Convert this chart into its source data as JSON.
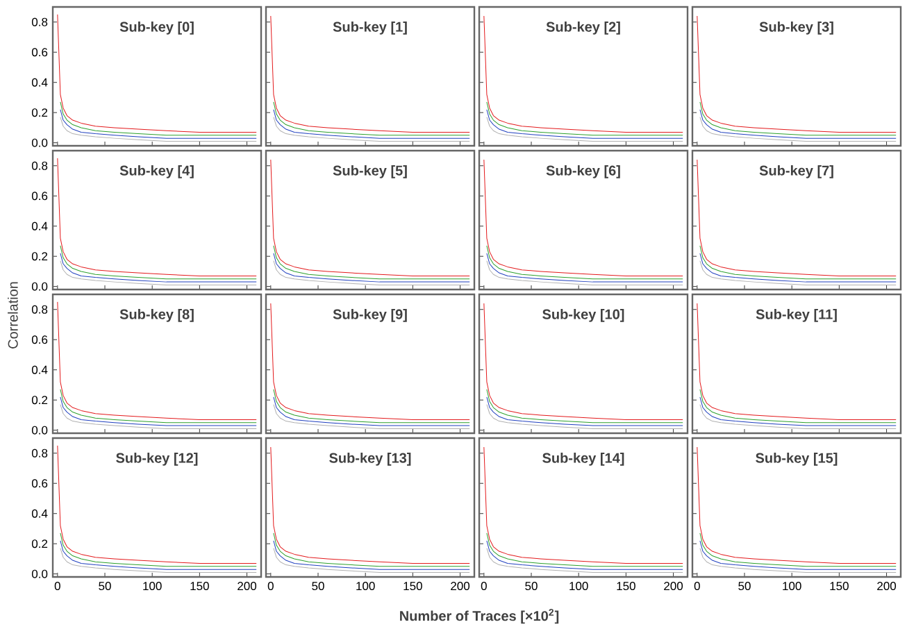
{
  "chart_data": [
    {
      "type": "line",
      "title": "Sub-key [0]",
      "tick_labels": "y",
      "x": [
        0,
        3,
        6,
        10,
        16,
        25,
        40,
        60,
        85,
        115,
        150,
        210
      ],
      "xlim": [
        -5,
        215
      ],
      "ylim": [
        -0.02,
        0.9
      ],
      "xticks": [
        0,
        50,
        100,
        150,
        200
      ],
      "yticks": [
        {
          "value": 0,
          "label": "0.0"
        },
        {
          "value": 0.2,
          "label": "0.2"
        },
        {
          "value": 0.4,
          "label": "0.4"
        },
        {
          "value": 0.6,
          "label": "0.6"
        },
        {
          "value": 0.8,
          "label": "0.8"
        }
      ],
      "series": [
        {
          "color": "#b0b0b0",
          "values": [
            null,
            0.17,
            0.11,
            0.08,
            0.06,
            0.05,
            0.04,
            0.03,
            0.02,
            0.01,
            0.01,
            0.01
          ]
        },
        {
          "color": "#1f3fbf",
          "values": [
            null,
            0.22,
            0.15,
            0.12,
            0.09,
            0.07,
            0.06,
            0.05,
            0.04,
            0.03,
            0.03,
            0.03
          ]
        },
        {
          "color": "#2ca02c",
          "values": [
            null,
            0.27,
            0.19,
            0.15,
            0.12,
            0.1,
            0.08,
            0.07,
            0.06,
            0.05,
            0.05,
            0.05
          ]
        },
        {
          "color": "#e31a1c",
          "values": [
            0.85,
            0.32,
            0.23,
            0.18,
            0.15,
            0.13,
            0.11,
            0.1,
            0.09,
            0.08,
            0.07,
            0.07
          ]
        }
      ]
    },
    {
      "type": "line",
      "title": "Sub-key [1]",
      "tick_labels": false,
      "x": [
        0,
        3,
        6,
        10,
        16,
        25,
        40,
        60,
        85,
        115,
        150,
        210
      ],
      "xlim": [
        -5,
        215
      ],
      "ylim": [
        -0.02,
        0.9
      ],
      "xticks": [
        0,
        50,
        100,
        150,
        200
      ],
      "yticks": [
        0,
        0.2,
        0.4,
        0.6,
        0.8
      ],
      "series": [
        {
          "color": "#b0b0b0",
          "values": [
            null,
            0.17,
            0.11,
            0.08,
            0.06,
            0.05,
            0.04,
            0.03,
            0.02,
            0.01,
            0.01,
            0.01
          ]
        },
        {
          "color": "#1f3fbf",
          "values": [
            null,
            0.22,
            0.15,
            0.12,
            0.09,
            0.07,
            0.06,
            0.05,
            0.04,
            0.03,
            0.03,
            0.03
          ]
        },
        {
          "color": "#2ca02c",
          "values": [
            null,
            0.27,
            0.19,
            0.15,
            0.12,
            0.1,
            0.08,
            0.07,
            0.06,
            0.05,
            0.05,
            0.05
          ]
        },
        {
          "color": "#e31a1c",
          "values": [
            0.84,
            0.32,
            0.23,
            0.18,
            0.15,
            0.13,
            0.11,
            0.1,
            0.09,
            0.08,
            0.07,
            0.07
          ]
        }
      ]
    },
    {
      "type": "line",
      "title": "Sub-key [2]",
      "tick_labels": false,
      "x": [
        0,
        3,
        6,
        10,
        16,
        25,
        40,
        60,
        85,
        115,
        150,
        210
      ],
      "xlim": [
        -5,
        215
      ],
      "ylim": [
        -0.02,
        0.9
      ],
      "xticks": [
        0,
        50,
        100,
        150,
        200
      ],
      "yticks": [
        0,
        0.2,
        0.4,
        0.6,
        0.8
      ],
      "series": [
        {
          "color": "#b0b0b0",
          "values": [
            null,
            0.17,
            0.11,
            0.08,
            0.06,
            0.05,
            0.04,
            0.03,
            0.02,
            0.01,
            0.01,
            0.01
          ]
        },
        {
          "color": "#1f3fbf",
          "values": [
            null,
            0.22,
            0.15,
            0.12,
            0.09,
            0.07,
            0.06,
            0.05,
            0.04,
            0.03,
            0.03,
            0.03
          ]
        },
        {
          "color": "#2ca02c",
          "values": [
            null,
            0.27,
            0.19,
            0.15,
            0.12,
            0.1,
            0.08,
            0.07,
            0.06,
            0.05,
            0.05,
            0.05
          ]
        },
        {
          "color": "#e31a1c",
          "values": [
            0.84,
            0.32,
            0.23,
            0.18,
            0.15,
            0.13,
            0.11,
            0.1,
            0.09,
            0.08,
            0.07,
            0.07
          ]
        }
      ]
    },
    {
      "type": "line",
      "title": "Sub-key [3]",
      "tick_labels": false,
      "x": [
        0,
        3,
        6,
        10,
        16,
        25,
        40,
        60,
        85,
        115,
        150,
        210
      ],
      "xlim": [
        -5,
        215
      ],
      "ylim": [
        -0.02,
        0.9
      ],
      "xticks": [
        0,
        50,
        100,
        150,
        200
      ],
      "yticks": [
        0,
        0.2,
        0.4,
        0.6,
        0.8
      ],
      "series": [
        {
          "color": "#b0b0b0",
          "values": [
            null,
            0.17,
            0.11,
            0.08,
            0.06,
            0.05,
            0.04,
            0.03,
            0.02,
            0.01,
            0.01,
            0.01
          ]
        },
        {
          "color": "#1f3fbf",
          "values": [
            null,
            0.22,
            0.15,
            0.12,
            0.09,
            0.07,
            0.06,
            0.05,
            0.04,
            0.03,
            0.03,
            0.03
          ]
        },
        {
          "color": "#2ca02c",
          "values": [
            null,
            0.27,
            0.19,
            0.15,
            0.12,
            0.1,
            0.08,
            0.07,
            0.06,
            0.05,
            0.05,
            0.05
          ]
        },
        {
          "color": "#e31a1c",
          "values": [
            0.84,
            0.32,
            0.23,
            0.18,
            0.15,
            0.13,
            0.11,
            0.1,
            0.09,
            0.08,
            0.07,
            0.07
          ]
        }
      ]
    },
    {
      "type": "line",
      "title": "Sub-key [4]",
      "ylabel": "Correlation",
      "tick_labels": "y",
      "x": [
        0,
        3,
        6,
        10,
        16,
        25,
        40,
        60,
        85,
        115,
        150,
        210
      ],
      "xlim": [
        -5,
        215
      ],
      "ylim": [
        -0.02,
        0.9
      ],
      "xticks": [
        0,
        50,
        100,
        150,
        200
      ],
      "yticks": [
        {
          "value": 0,
          "label": "0.0"
        },
        {
          "value": 0.2,
          "label": "0.2"
        },
        {
          "value": 0.4,
          "label": "0.4"
        },
        {
          "value": 0.6,
          "label": "0.6"
        },
        {
          "value": 0.8,
          "label": "0.8"
        }
      ],
      "series": [
        {
          "color": "#b0b0b0",
          "values": [
            null,
            0.17,
            0.11,
            0.08,
            0.06,
            0.05,
            0.04,
            0.03,
            0.02,
            0.01,
            0.01,
            0.01
          ]
        },
        {
          "color": "#1f3fbf",
          "values": [
            null,
            0.22,
            0.15,
            0.12,
            0.09,
            0.07,
            0.06,
            0.05,
            0.04,
            0.03,
            0.03,
            0.03
          ]
        },
        {
          "color": "#2ca02c",
          "values": [
            null,
            0.27,
            0.19,
            0.15,
            0.12,
            0.1,
            0.08,
            0.07,
            0.06,
            0.05,
            0.05,
            0.05
          ]
        },
        {
          "color": "#e31a1c",
          "values": [
            0.85,
            0.32,
            0.23,
            0.18,
            0.15,
            0.13,
            0.11,
            0.1,
            0.09,
            0.08,
            0.07,
            0.07
          ]
        }
      ]
    },
    {
      "type": "line",
      "title": "Sub-key [5]",
      "tick_labels": false,
      "x": [
        0,
        3,
        6,
        10,
        16,
        25,
        40,
        60,
        85,
        115,
        150,
        210
      ],
      "xlim": [
        -5,
        215
      ],
      "ylim": [
        -0.02,
        0.9
      ],
      "xticks": [
        0,
        50,
        100,
        150,
        200
      ],
      "yticks": [
        0,
        0.2,
        0.4,
        0.6,
        0.8
      ],
      "series": [
        {
          "color": "#b0b0b0",
          "values": [
            null,
            0.17,
            0.11,
            0.08,
            0.06,
            0.05,
            0.04,
            0.03,
            0.02,
            0.01,
            0.01,
            0.01
          ]
        },
        {
          "color": "#1f3fbf",
          "values": [
            null,
            0.22,
            0.15,
            0.12,
            0.09,
            0.07,
            0.06,
            0.05,
            0.04,
            0.03,
            0.03,
            0.03
          ]
        },
        {
          "color": "#2ca02c",
          "values": [
            null,
            0.27,
            0.19,
            0.15,
            0.12,
            0.1,
            0.08,
            0.07,
            0.06,
            0.05,
            0.05,
            0.05
          ]
        },
        {
          "color": "#e31a1c",
          "values": [
            0.84,
            0.32,
            0.23,
            0.18,
            0.15,
            0.13,
            0.11,
            0.1,
            0.09,
            0.08,
            0.07,
            0.07
          ]
        }
      ]
    },
    {
      "type": "line",
      "title": "Sub-key [6]",
      "tick_labels": false,
      "x": [
        0,
        3,
        6,
        10,
        16,
        25,
        40,
        60,
        85,
        115,
        150,
        210
      ],
      "xlim": [
        -5,
        215
      ],
      "ylim": [
        -0.02,
        0.9
      ],
      "xticks": [
        0,
        50,
        100,
        150,
        200
      ],
      "yticks": [
        0,
        0.2,
        0.4,
        0.6,
        0.8
      ],
      "series": [
        {
          "color": "#b0b0b0",
          "values": [
            null,
            0.17,
            0.11,
            0.08,
            0.06,
            0.05,
            0.04,
            0.03,
            0.02,
            0.01,
            0.01,
            0.01
          ]
        },
        {
          "color": "#1f3fbf",
          "values": [
            null,
            0.22,
            0.15,
            0.12,
            0.09,
            0.07,
            0.06,
            0.05,
            0.04,
            0.03,
            0.03,
            0.03
          ]
        },
        {
          "color": "#2ca02c",
          "values": [
            null,
            0.27,
            0.19,
            0.15,
            0.12,
            0.1,
            0.08,
            0.07,
            0.06,
            0.05,
            0.05,
            0.05
          ]
        },
        {
          "color": "#e31a1c",
          "values": [
            0.84,
            0.32,
            0.23,
            0.18,
            0.15,
            0.13,
            0.11,
            0.1,
            0.09,
            0.08,
            0.07,
            0.07
          ]
        }
      ]
    },
    {
      "type": "line",
      "title": "Sub-key [7]",
      "tick_labels": false,
      "x": [
        0,
        3,
        6,
        10,
        16,
        25,
        40,
        60,
        85,
        115,
        150,
        210
      ],
      "xlim": [
        -5,
        215
      ],
      "ylim": [
        -0.02,
        0.9
      ],
      "xticks": [
        0,
        50,
        100,
        150,
        200
      ],
      "yticks": [
        0,
        0.2,
        0.4,
        0.6,
        0.8
      ],
      "series": [
        {
          "color": "#b0b0b0",
          "values": [
            null,
            0.17,
            0.11,
            0.08,
            0.06,
            0.05,
            0.04,
            0.03,
            0.02,
            0.01,
            0.01,
            0.01
          ]
        },
        {
          "color": "#1f3fbf",
          "values": [
            null,
            0.22,
            0.15,
            0.12,
            0.09,
            0.07,
            0.06,
            0.05,
            0.04,
            0.03,
            0.03,
            0.03
          ]
        },
        {
          "color": "#2ca02c",
          "values": [
            null,
            0.27,
            0.19,
            0.15,
            0.12,
            0.1,
            0.08,
            0.07,
            0.06,
            0.05,
            0.05,
            0.05
          ]
        },
        {
          "color": "#e31a1c",
          "values": [
            0.84,
            0.32,
            0.23,
            0.18,
            0.15,
            0.13,
            0.11,
            0.1,
            0.09,
            0.08,
            0.07,
            0.07
          ]
        }
      ]
    },
    {
      "type": "line",
      "title": "Sub-key [8]",
      "tick_labels": "y",
      "x": [
        0,
        3,
        6,
        10,
        16,
        25,
        40,
        60,
        85,
        115,
        150,
        210
      ],
      "xlim": [
        -5,
        215
      ],
      "ylim": [
        -0.02,
        0.9
      ],
      "xticks": [
        0,
        50,
        100,
        150,
        200
      ],
      "yticks": [
        {
          "value": 0,
          "label": "0.0"
        },
        {
          "value": 0.2,
          "label": "0.2"
        },
        {
          "value": 0.4,
          "label": "0.4"
        },
        {
          "value": 0.6,
          "label": "0.6"
        },
        {
          "value": 0.8,
          "label": "0.8"
        }
      ],
      "series": [
        {
          "color": "#b0b0b0",
          "values": [
            null,
            0.17,
            0.11,
            0.08,
            0.06,
            0.05,
            0.04,
            0.03,
            0.02,
            0.01,
            0.01,
            0.01
          ]
        },
        {
          "color": "#1f3fbf",
          "values": [
            null,
            0.22,
            0.15,
            0.12,
            0.09,
            0.07,
            0.06,
            0.05,
            0.04,
            0.03,
            0.03,
            0.03
          ]
        },
        {
          "color": "#2ca02c",
          "values": [
            null,
            0.27,
            0.19,
            0.15,
            0.12,
            0.1,
            0.08,
            0.07,
            0.06,
            0.05,
            0.05,
            0.05
          ]
        },
        {
          "color": "#e31a1c",
          "values": [
            0.85,
            0.32,
            0.23,
            0.18,
            0.15,
            0.13,
            0.11,
            0.1,
            0.09,
            0.08,
            0.07,
            0.07
          ]
        }
      ]
    },
    {
      "type": "line",
      "title": "Sub-key [9]",
      "tick_labels": false,
      "x": [
        0,
        3,
        6,
        10,
        16,
        25,
        40,
        60,
        85,
        115,
        150,
        210
      ],
      "xlim": [
        -5,
        215
      ],
      "ylim": [
        -0.02,
        0.9
      ],
      "xticks": [
        0,
        50,
        100,
        150,
        200
      ],
      "yticks": [
        0,
        0.2,
        0.4,
        0.6,
        0.8
      ],
      "series": [
        {
          "color": "#b0b0b0",
          "values": [
            null,
            0.17,
            0.11,
            0.08,
            0.06,
            0.05,
            0.04,
            0.03,
            0.02,
            0.01,
            0.01,
            0.01
          ]
        },
        {
          "color": "#1f3fbf",
          "values": [
            null,
            0.22,
            0.15,
            0.12,
            0.09,
            0.07,
            0.06,
            0.05,
            0.04,
            0.03,
            0.03,
            0.03
          ]
        },
        {
          "color": "#2ca02c",
          "values": [
            null,
            0.27,
            0.19,
            0.15,
            0.12,
            0.1,
            0.08,
            0.07,
            0.06,
            0.05,
            0.05,
            0.05
          ]
        },
        {
          "color": "#e31a1c",
          "values": [
            0.84,
            0.32,
            0.23,
            0.18,
            0.15,
            0.13,
            0.11,
            0.1,
            0.09,
            0.08,
            0.07,
            0.07
          ]
        }
      ]
    },
    {
      "type": "line",
      "title": "Sub-key [10]",
      "tick_labels": false,
      "x": [
        0,
        3,
        6,
        10,
        16,
        25,
        40,
        60,
        85,
        115,
        150,
        210
      ],
      "xlim": [
        -5,
        215
      ],
      "ylim": [
        -0.02,
        0.9
      ],
      "xticks": [
        0,
        50,
        100,
        150,
        200
      ],
      "yticks": [
        0,
        0.2,
        0.4,
        0.6,
        0.8
      ],
      "series": [
        {
          "color": "#b0b0b0",
          "values": [
            null,
            0.17,
            0.11,
            0.08,
            0.06,
            0.05,
            0.04,
            0.03,
            0.02,
            0.01,
            0.01,
            0.01
          ]
        },
        {
          "color": "#1f3fbf",
          "values": [
            null,
            0.22,
            0.15,
            0.12,
            0.09,
            0.07,
            0.06,
            0.05,
            0.04,
            0.03,
            0.03,
            0.03
          ]
        },
        {
          "color": "#2ca02c",
          "values": [
            null,
            0.27,
            0.19,
            0.15,
            0.12,
            0.1,
            0.08,
            0.07,
            0.06,
            0.05,
            0.05,
            0.05
          ]
        },
        {
          "color": "#e31a1c",
          "values": [
            0.84,
            0.32,
            0.23,
            0.18,
            0.15,
            0.13,
            0.11,
            0.1,
            0.09,
            0.08,
            0.07,
            0.07
          ]
        }
      ]
    },
    {
      "type": "line",
      "title": "Sub-key [11]",
      "tick_labels": false,
      "x": [
        0,
        3,
        6,
        10,
        16,
        25,
        40,
        60,
        85,
        115,
        150,
        210
      ],
      "xlim": [
        -5,
        215
      ],
      "ylim": [
        -0.02,
        0.9
      ],
      "xticks": [
        0,
        50,
        100,
        150,
        200
      ],
      "yticks": [
        0,
        0.2,
        0.4,
        0.6,
        0.8
      ],
      "series": [
        {
          "color": "#b0b0b0",
          "values": [
            null,
            0.17,
            0.11,
            0.08,
            0.06,
            0.05,
            0.04,
            0.03,
            0.02,
            0.01,
            0.01,
            0.01
          ]
        },
        {
          "color": "#1f3fbf",
          "values": [
            null,
            0.22,
            0.15,
            0.12,
            0.09,
            0.07,
            0.06,
            0.05,
            0.04,
            0.03,
            0.03,
            0.03
          ]
        },
        {
          "color": "#2ca02c",
          "values": [
            null,
            0.27,
            0.19,
            0.15,
            0.12,
            0.1,
            0.08,
            0.07,
            0.06,
            0.05,
            0.05,
            0.05
          ]
        },
        {
          "color": "#e31a1c",
          "values": [
            0.84,
            0.32,
            0.23,
            0.18,
            0.15,
            0.13,
            0.11,
            0.1,
            0.09,
            0.08,
            0.07,
            0.07
          ]
        }
      ]
    },
    {
      "type": "line",
      "title": "Sub-key [12]",
      "x": [
        0,
        3,
        6,
        10,
        16,
        25,
        40,
        60,
        85,
        115,
        150,
        210
      ],
      "xlim": [
        -5,
        215
      ],
      "ylim": [
        -0.02,
        0.9
      ],
      "xticks": [
        0,
        50,
        100,
        150,
        200
      ],
      "yticks": [
        {
          "value": 0,
          "label": "0.0"
        },
        {
          "value": 0.2,
          "label": "0.2"
        },
        {
          "value": 0.4,
          "label": "0.4"
        },
        {
          "value": 0.6,
          "label": "0.6"
        },
        {
          "value": 0.8,
          "label": "0.8"
        }
      ],
      "series": [
        {
          "color": "#b0b0b0",
          "values": [
            null,
            0.17,
            0.11,
            0.08,
            0.06,
            0.05,
            0.04,
            0.03,
            0.02,
            0.01,
            0.01,
            0.01
          ]
        },
        {
          "color": "#1f3fbf",
          "values": [
            null,
            0.22,
            0.15,
            0.12,
            0.09,
            0.07,
            0.06,
            0.05,
            0.04,
            0.03,
            0.03,
            0.03
          ]
        },
        {
          "color": "#2ca02c",
          "values": [
            null,
            0.27,
            0.19,
            0.15,
            0.12,
            0.1,
            0.08,
            0.07,
            0.06,
            0.05,
            0.05,
            0.05
          ]
        },
        {
          "color": "#e31a1c",
          "values": [
            0.85,
            0.32,
            0.23,
            0.18,
            0.15,
            0.13,
            0.11,
            0.1,
            0.09,
            0.08,
            0.07,
            0.07
          ]
        }
      ]
    },
    {
      "type": "line",
      "title": "Sub-key [13]",
      "xlabel": "Number of Traces [×10$^{2}$]",
      "tick_labels": "x",
      "x": [
        0,
        3,
        6,
        10,
        16,
        25,
        40,
        60,
        85,
        115,
        150,
        210
      ],
      "xlim": [
        -5,
        215
      ],
      "ylim": [
        -0.02,
        0.9
      ],
      "xticks": [
        0,
        50,
        100,
        150,
        200
      ],
      "yticks": [
        0,
        0.2,
        0.4,
        0.6,
        0.8
      ],
      "series": [
        {
          "color": "#b0b0b0",
          "values": [
            null,
            0.17,
            0.11,
            0.08,
            0.06,
            0.05,
            0.04,
            0.03,
            0.02,
            0.01,
            0.01,
            0.01
          ]
        },
        {
          "color": "#1f3fbf",
          "values": [
            null,
            0.22,
            0.15,
            0.12,
            0.09,
            0.07,
            0.06,
            0.05,
            0.04,
            0.03,
            0.03,
            0.03
          ]
        },
        {
          "color": "#2ca02c",
          "values": [
            null,
            0.27,
            0.19,
            0.15,
            0.12,
            0.1,
            0.08,
            0.07,
            0.06,
            0.05,
            0.05,
            0.05
          ]
        },
        {
          "color": "#e31a1c",
          "values": [
            0.84,
            0.32,
            0.23,
            0.18,
            0.15,
            0.13,
            0.11,
            0.1,
            0.09,
            0.08,
            0.07,
            0.07
          ]
        }
      ]
    },
    {
      "type": "line",
      "title": "Sub-key [14]",
      "tick_labels": "x",
      "x": [
        0,
        3,
        6,
        10,
        16,
        25,
        40,
        60,
        85,
        115,
        150,
        210
      ],
      "xlim": [
        -5,
        215
      ],
      "ylim": [
        -0.02,
        0.9
      ],
      "xticks": [
        0,
        50,
        100,
        150,
        200
      ],
      "yticks": [
        0,
        0.2,
        0.4,
        0.6,
        0.8
      ],
      "series": [
        {
          "color": "#b0b0b0",
          "values": [
            null,
            0.17,
            0.11,
            0.08,
            0.06,
            0.05,
            0.04,
            0.03,
            0.02,
            0.01,
            0.01,
            0.01
          ]
        },
        {
          "color": "#1f3fbf",
          "values": [
            null,
            0.22,
            0.15,
            0.12,
            0.09,
            0.07,
            0.06,
            0.05,
            0.04,
            0.03,
            0.03,
            0.03
          ]
        },
        {
          "color": "#2ca02c",
          "values": [
            null,
            0.27,
            0.19,
            0.15,
            0.12,
            0.1,
            0.08,
            0.07,
            0.06,
            0.05,
            0.05,
            0.05
          ]
        },
        {
          "color": "#e31a1c",
          "values": [
            0.84,
            0.32,
            0.23,
            0.18,
            0.15,
            0.13,
            0.11,
            0.1,
            0.09,
            0.08,
            0.07,
            0.07
          ]
        }
      ]
    },
    {
      "type": "line",
      "title": "Sub-key [15]",
      "tick_labels": "x",
      "x": [
        0,
        3,
        6,
        10,
        16,
        25,
        40,
        60,
        85,
        115,
        150,
        210
      ],
      "xlim": [
        -5,
        215
      ],
      "ylim": [
        -0.02,
        0.9
      ],
      "xticks": [
        0,
        50,
        100,
        150,
        200
      ],
      "yticks": [
        0,
        0.2,
        0.4,
        0.6,
        0.8
      ],
      "series": [
        {
          "color": "#b0b0b0",
          "values": [
            null,
            0.17,
            0.11,
            0.08,
            0.06,
            0.05,
            0.04,
            0.03,
            0.02,
            0.01,
            0.01,
            0.01
          ]
        },
        {
          "color": "#1f3fbf",
          "values": [
            null,
            0.22,
            0.15,
            0.12,
            0.09,
            0.07,
            0.06,
            0.05,
            0.04,
            0.03,
            0.03,
            0.03
          ]
        },
        {
          "color": "#2ca02c",
          "values": [
            null,
            0.27,
            0.19,
            0.15,
            0.12,
            0.1,
            0.08,
            0.07,
            0.06,
            0.05,
            0.05,
            0.05
          ]
        },
        {
          "color": "#e31a1c",
          "values": [
            0.84,
            0.32,
            0.23,
            0.18,
            0.15,
            0.13,
            0.11,
            0.1,
            0.09,
            0.08,
            0.07,
            0.07
          ]
        }
      ]
    }
  ]
}
